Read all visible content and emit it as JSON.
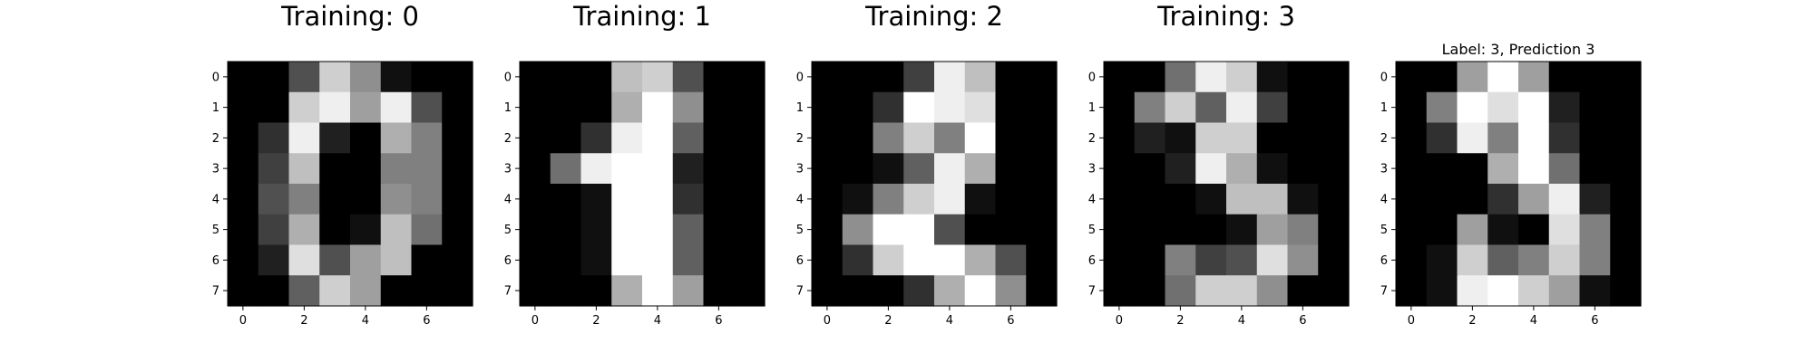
{
  "chart_data": {
    "type": "heatmap",
    "colormap": "gray_r",
    "value_range": [
      0,
      16
    ],
    "x_ticks": [
      0,
      2,
      4,
      6
    ],
    "y_ticks": [
      0,
      1,
      2,
      3,
      4,
      5,
      6,
      7
    ],
    "panels": [
      {
        "title": "Training: 0",
        "grid": [
          [
            0,
            0,
            5,
            13,
            9,
            1,
            0,
            0
          ],
          [
            0,
            0,
            13,
            15,
            10,
            15,
            5,
            0
          ],
          [
            0,
            3,
            15,
            2,
            0,
            11,
            8,
            0
          ],
          [
            0,
            4,
            12,
            0,
            0,
            8,
            8,
            0
          ],
          [
            0,
            5,
            8,
            0,
            0,
            9,
            8,
            0
          ],
          [
            0,
            4,
            11,
            0,
            1,
            12,
            7,
            0
          ],
          [
            0,
            2,
            14,
            5,
            10,
            12,
            0,
            0
          ],
          [
            0,
            0,
            6,
            13,
            10,
            0,
            0,
            0
          ]
        ]
      },
      {
        "title": "Training: 1",
        "grid": [
          [
            0,
            0,
            0,
            12,
            13,
            5,
            0,
            0
          ],
          [
            0,
            0,
            0,
            11,
            16,
            9,
            0,
            0
          ],
          [
            0,
            0,
            3,
            15,
            16,
            6,
            0,
            0
          ],
          [
            0,
            7,
            15,
            16,
            16,
            2,
            0,
            0
          ],
          [
            0,
            0,
            1,
            16,
            16,
            3,
            0,
            0
          ],
          [
            0,
            0,
            1,
            16,
            16,
            6,
            0,
            0
          ],
          [
            0,
            0,
            1,
            16,
            16,
            6,
            0,
            0
          ],
          [
            0,
            0,
            0,
            11,
            16,
            10,
            0,
            0
          ]
        ]
      },
      {
        "title": "Training: 2",
        "grid": [
          [
            0,
            0,
            0,
            4,
            15,
            12,
            0,
            0
          ],
          [
            0,
            0,
            3,
            16,
            15,
            14,
            0,
            0
          ],
          [
            0,
            0,
            8,
            13,
            8,
            16,
            0,
            0
          ],
          [
            0,
            0,
            1,
            6,
            15,
            11,
            0,
            0
          ],
          [
            0,
            1,
            8,
            13,
            15,
            1,
            0,
            0
          ],
          [
            0,
            9,
            16,
            16,
            5,
            0,
            0,
            0
          ],
          [
            0,
            3,
            13,
            16,
            16,
            11,
            5,
            0
          ],
          [
            0,
            0,
            0,
            3,
            11,
            16,
            9,
            0
          ]
        ]
      },
      {
        "title": "Training: 3",
        "grid": [
          [
            0,
            0,
            7,
            15,
            13,
            1,
            0,
            0
          ],
          [
            0,
            8,
            13,
            6,
            15,
            4,
            0,
            0
          ],
          [
            0,
            2,
            1,
            13,
            13,
            0,
            0,
            0
          ],
          [
            0,
            0,
            2,
            15,
            11,
            1,
            0,
            0
          ],
          [
            0,
            0,
            0,
            1,
            12,
            12,
            1,
            0
          ],
          [
            0,
            0,
            0,
            0,
            1,
            10,
            8,
            0
          ],
          [
            0,
            0,
            8,
            4,
            5,
            14,
            9,
            0
          ],
          [
            0,
            0,
            7,
            13,
            13,
            9,
            0,
            0
          ]
        ]
      },
      {
        "title": "Label: 3, Prediction 3",
        "grid": [
          [
            0,
            0,
            10,
            16,
            10,
            0,
            0,
            0
          ],
          [
            0,
            8,
            16,
            14,
            16,
            2,
            0,
            0
          ],
          [
            0,
            3,
            15,
            8,
            16,
            3,
            0,
            0
          ],
          [
            0,
            0,
            0,
            11,
            16,
            7,
            0,
            0
          ],
          [
            0,
            0,
            0,
            3,
            10,
            15,
            2,
            0
          ],
          [
            0,
            0,
            10,
            1,
            0,
            14,
            8,
            0
          ],
          [
            0,
            1,
            13,
            6,
            8,
            13,
            8,
            0
          ],
          [
            0,
            1,
            15,
            16,
            13,
            10,
            1,
            0
          ]
        ]
      }
    ]
  }
}
